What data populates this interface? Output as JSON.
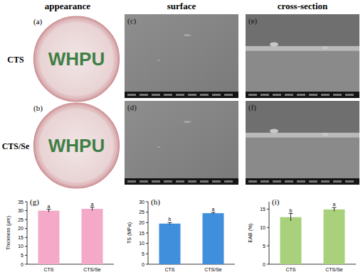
{
  "headers": [
    "appearance",
    "surface",
    "cross-section"
  ],
  "rows": [
    "CTS",
    "CTS/Se"
  ],
  "panels": [
    {
      "label": "(a)",
      "text": "WHPU"
    },
    {
      "label": "(b)",
      "text": "WHPU"
    },
    {
      "label": "(c)"
    },
    {
      "label": "(d)"
    },
    {
      "label": "(e)"
    },
    {
      "label": "(f)"
    }
  ],
  "chart_data": [
    {
      "type": "bar",
      "annotations": [
        "(g)"
      ],
      "y_label": "Thickness (μm)",
      "categories": [
        "CTS",
        "CTS/Se"
      ],
      "values": [
        30,
        31
      ],
      "errors": [
        0.8,
        1.0
      ],
      "significance": [
        "a",
        "a"
      ],
      "color": "#f4a9c9",
      "ylim": [
        0,
        35
      ],
      "yticks": [
        0,
        5,
        10,
        15,
        20,
        25,
        30,
        35
      ]
    },
    {
      "type": "bar",
      "annotations": [
        "(h)"
      ],
      "y_label": "TS (MPa)",
      "categories": [
        "CTS",
        "CTS/Se"
      ],
      "values": [
        19.5,
        24.5
      ],
      "errors": [
        0.5,
        0.4
      ],
      "significance": [
        "b",
        "a"
      ],
      "color": "#3f8fdc",
      "ylim": [
        0,
        30
      ],
      "yticks": [
        0,
        5,
        10,
        15,
        20,
        25,
        30
      ]
    },
    {
      "type": "bar",
      "annotations": [
        "(i)"
      ],
      "y_label": "EAB (%)",
      "categories": [
        "CTS",
        "CTS/Se"
      ],
      "values": [
        12.8,
        14.9
      ],
      "errors": [
        1.0,
        0.5
      ],
      "significance": [
        "b",
        "a"
      ],
      "color": "#a9d17c",
      "ylim": [
        0,
        17
      ],
      "yticks": [
        0,
        5,
        10,
        15
      ]
    }
  ]
}
